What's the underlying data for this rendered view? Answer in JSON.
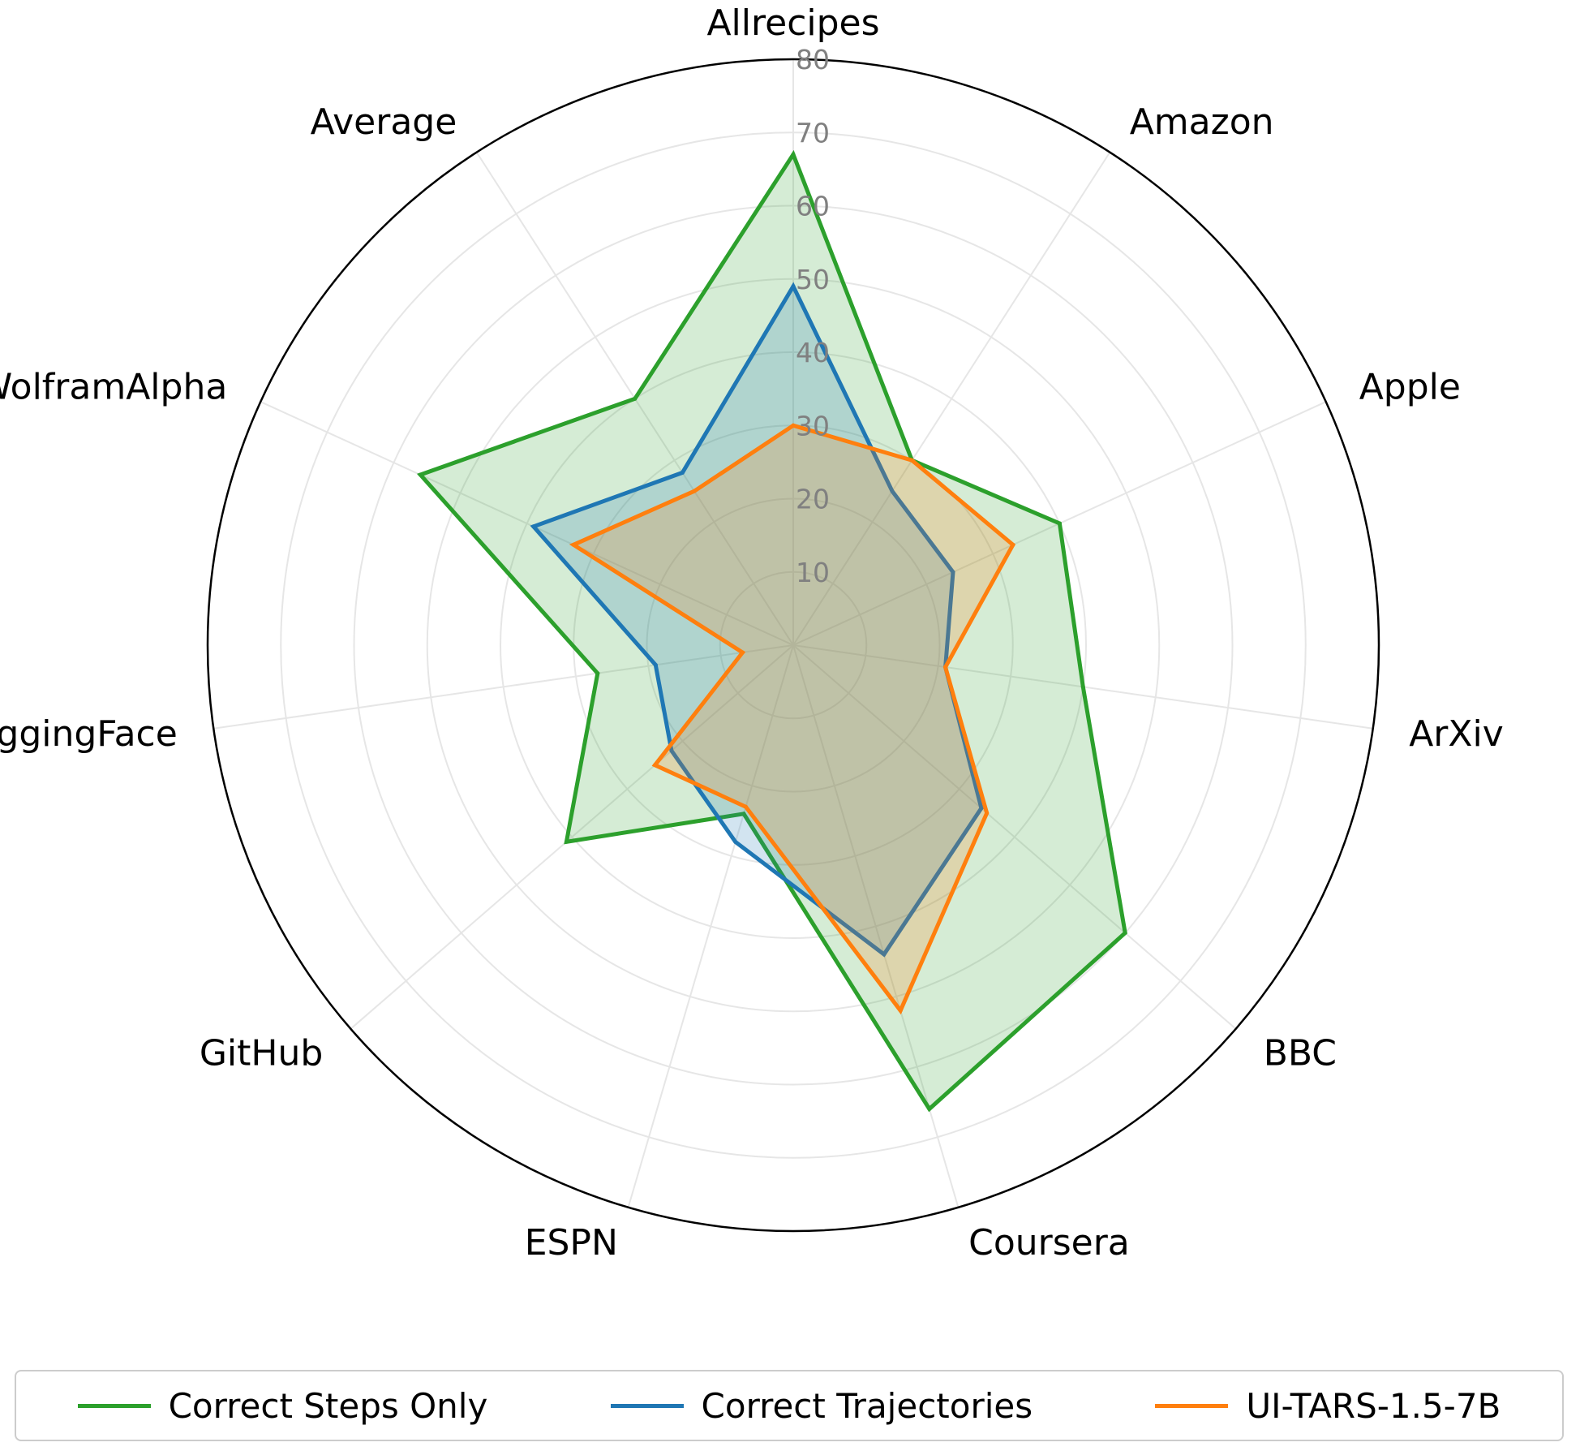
{
  "chart_data": {
    "type": "radar",
    "categories": [
      "Allrecipes",
      "Amazon",
      "Apple",
      "ArXiv",
      "BBC",
      "Coursera",
      "ESPN",
      "GitHub",
      "HuggingFace",
      "WolframAlpha",
      "Average"
    ],
    "r_ticks": [
      10,
      20,
      30,
      40,
      50,
      60,
      70,
      80
    ],
    "r_tick_labels": [
      "10",
      "20",
      "30",
      "40",
      "50",
      "60",
      "70",
      "80"
    ],
    "rlim": [
      0,
      80
    ],
    "grid": true,
    "legend_position": "bottom",
    "series": [
      {
        "name": "Correct Steps Only",
        "color": "#2ca02c",
        "values": [
          67,
          30,
          40,
          40,
          60,
          66,
          24,
          41,
          27,
          56,
          40
        ]
      },
      {
        "name": "Correct Trajectories",
        "color": "#1f77b4",
        "values": [
          49,
          25,
          24,
          21,
          34,
          44,
          28,
          22,
          19,
          39,
          28
        ]
      },
      {
        "name": "UI-TARS-1.5-7B",
        "color": "#ff7f0e",
        "values": [
          30,
          30,
          33,
          21,
          35,
          52,
          23,
          25,
          7,
          33,
          25
        ]
      }
    ]
  }
}
